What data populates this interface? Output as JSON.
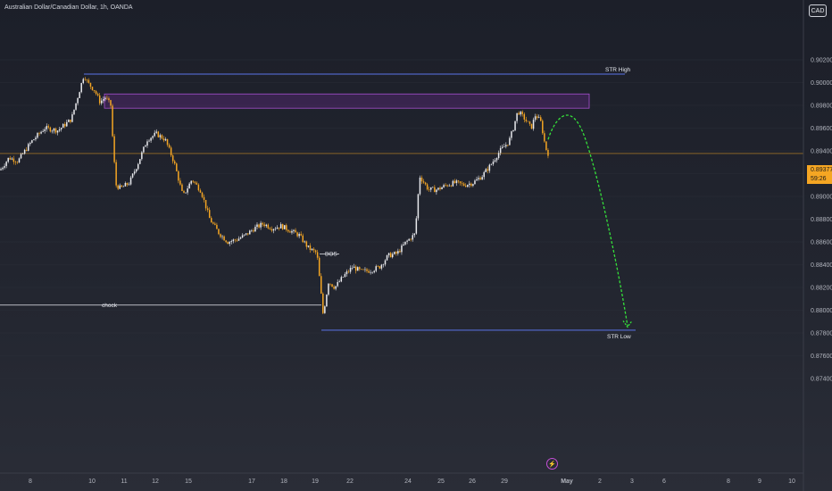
{
  "header": {
    "title": "Australian Dollar/Canadian Dollar, 1h, OANDA",
    "currency_button": "CAD"
  },
  "price_tag": {
    "price": "0.89377",
    "countdown": "59:26"
  },
  "annotations": {
    "str_high": "STR High",
    "str_low": "STR Low",
    "bos": "BOS",
    "choch": "chock"
  },
  "colors": {
    "up_candle": "#e9eaee",
    "down_candle": "#f5a623",
    "str_line": "#5b74e8",
    "zone_border": "#a84fd1",
    "zone_fill": "#6b2a8c",
    "projection": "#35e03a",
    "current_price_line": "#f5a623"
  },
  "chart_data": {
    "type": "candlestick",
    "title": "Australian Dollar/Canadian Dollar, 1h, OANDA",
    "y_ticks": [
      "0.90200",
      "0.90000",
      "0.89800",
      "0.89600",
      "0.89400",
      "0.89200",
      "0.89000",
      "0.88800",
      "0.88600",
      "0.88400",
      "0.88200",
      "0.88000",
      "0.87800",
      "0.87600",
      "0.87400"
    ],
    "y_values": [
      0.902,
      0.9,
      0.898,
      0.896,
      0.894,
      0.892,
      0.89,
      0.888,
      0.886,
      0.884,
      0.882,
      0.88,
      0.878,
      0.876,
      0.874
    ],
    "ylim": [
      0.8735,
      0.9035
    ],
    "x_ticks": [
      "8",
      "10",
      "11",
      "12",
      "15",
      "17",
      "18",
      "19",
      "22",
      "24",
      "25",
      "26",
      "29",
      "May",
      "2",
      "3",
      "6",
      "8",
      "9",
      "10"
    ],
    "current_price": 0.89377,
    "price_path": [
      [
        0,
        0.8923
      ],
      [
        10,
        0.8934
      ],
      [
        20,
        0.8931
      ],
      [
        35,
        0.8948
      ],
      [
        50,
        0.896
      ],
      [
        65,
        0.8958
      ],
      [
        80,
        0.8968
      ],
      [
        88,
        0.899
      ],
      [
        94,
        0.9007
      ],
      [
        98,
        0.9
      ],
      [
        106,
        0.8993
      ],
      [
        112,
        0.8983
      ],
      [
        118,
        0.8987
      ],
      [
        124,
        0.898
      ],
      [
        127,
        0.894
      ],
      [
        130,
        0.891
      ],
      [
        135,
        0.8907
      ],
      [
        145,
        0.8912
      ],
      [
        155,
        0.893
      ],
      [
        165,
        0.895
      ],
      [
        175,
        0.8955
      ],
      [
        185,
        0.895
      ],
      [
        195,
        0.893
      ],
      [
        205,
        0.89
      ],
      [
        215,
        0.8915
      ],
      [
        225,
        0.8905
      ],
      [
        235,
        0.888
      ],
      [
        245,
        0.8868
      ],
      [
        255,
        0.886
      ],
      [
        265,
        0.8862
      ],
      [
        275,
        0.8866
      ],
      [
        285,
        0.8872
      ],
      [
        295,
        0.8876
      ],
      [
        305,
        0.8872
      ],
      [
        315,
        0.8874
      ],
      [
        325,
        0.887
      ],
      [
        335,
        0.8866
      ],
      [
        345,
        0.8855
      ],
      [
        355,
        0.885
      ],
      [
        362,
        0.8796
      ],
      [
        368,
        0.8825
      ],
      [
        375,
        0.882
      ],
      [
        385,
        0.883
      ],
      [
        395,
        0.8838
      ],
      [
        405,
        0.8834
      ],
      [
        415,
        0.8835
      ],
      [
        425,
        0.8838
      ],
      [
        435,
        0.8848
      ],
      [
        445,
        0.885
      ],
      [
        455,
        0.886
      ],
      [
        465,
        0.8867
      ],
      [
        470,
        0.8918
      ],
      [
        480,
        0.8906
      ],
      [
        490,
        0.8906
      ],
      [
        500,
        0.891
      ],
      [
        510,
        0.8912
      ],
      [
        520,
        0.891
      ],
      [
        530,
        0.8912
      ],
      [
        540,
        0.8918
      ],
      [
        550,
        0.8928
      ],
      [
        560,
        0.894
      ],
      [
        570,
        0.8948
      ],
      [
        575,
        0.896
      ],
      [
        580,
        0.8975
      ],
      [
        588,
        0.8968
      ],
      [
        595,
        0.896
      ],
      [
        600,
        0.8972
      ],
      [
        606,
        0.8965
      ],
      [
        611,
        0.8943
      ],
      [
        614,
        0.89377
      ]
    ],
    "levels": {
      "str_high": 0.90075,
      "str_low": 0.87825,
      "choch": 0.88045,
      "bos": 0.88495,
      "supply_zone": [
        0.89775,
        0.899
      ]
    },
    "projection": [
      [
        614,
        0.895
      ],
      [
        635,
        0.8972
      ],
      [
        655,
        0.8952
      ],
      [
        675,
        0.89
      ],
      [
        692,
        0.884
      ],
      [
        703,
        0.8786
      ]
    ]
  }
}
